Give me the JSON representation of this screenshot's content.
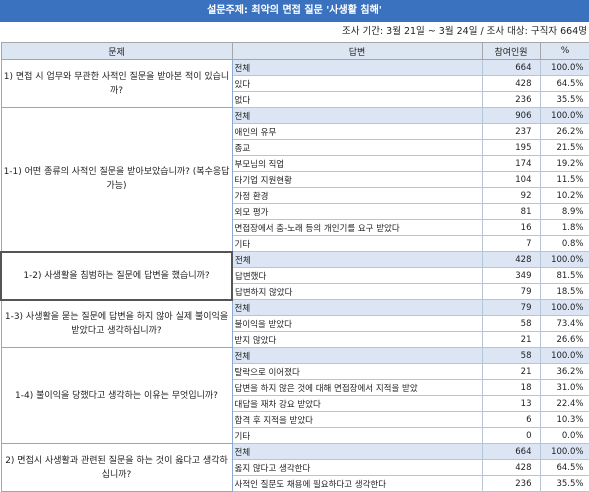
{
  "title": "설문주제: 최악의 면접 질문 '사생활 침해'",
  "period": "조사 기간: 3월 21일 ~ 3월 24일 / 조사 대상: 구직자 664명",
  "headers": {
    "question": "문제",
    "answer": "답변",
    "count": "참여인원",
    "percent": "%"
  },
  "sections": [
    {
      "question": "1) 면접 시 업무와 무관한 사적인 질문을 받아본 적이 있습니까?",
      "rows": [
        {
          "answer": "전체",
          "count": "664",
          "percent": "100.0%"
        },
        {
          "answer": "있다",
          "count": "428",
          "percent": "64.5%"
        },
        {
          "answer": "없다",
          "count": "236",
          "percent": "35.5%"
        }
      ]
    },
    {
      "question": "1-1) 어떤 종류의 사적인 질문을 받아보았습니까? (복수응답 가능)",
      "rows": [
        {
          "answer": "전체",
          "count": "906",
          "percent": "100.0%"
        },
        {
          "answer": "애인의 유무",
          "count": "237",
          "percent": "26.2%"
        },
        {
          "answer": "종교",
          "count": "195",
          "percent": "21.5%"
        },
        {
          "answer": "부모님의 직업",
          "count": "174",
          "percent": "19.2%"
        },
        {
          "answer": "타기업 지원현황",
          "count": "104",
          "percent": "11.5%"
        },
        {
          "answer": "가정 환경",
          "count": "92",
          "percent": "10.2%"
        },
        {
          "answer": "외모 평가",
          "count": "81",
          "percent": "8.9%"
        },
        {
          "answer": "면접장에서 춤-노래 등의 개인기를 요구 받았다",
          "count": "16",
          "percent": "1.8%"
        },
        {
          "answer": "기타",
          "count": "7",
          "percent": "0.8%"
        }
      ]
    },
    {
      "question": "1-2) 사생활을 침범하는 질문에 답변을 했습니까?",
      "highlight": true,
      "rows": [
        {
          "answer": "전체",
          "count": "428",
          "percent": "100.0%"
        },
        {
          "answer": "답변했다",
          "count": "349",
          "percent": "81.5%"
        },
        {
          "answer": "답변하지 않았다",
          "count": "79",
          "percent": "18.5%"
        }
      ]
    },
    {
      "question": "1-3) 사생활을 묻는 질문에 답변을 하지 않아 실제 불이익을 받았다고 생각하십니까?",
      "rows": [
        {
          "answer": "전체",
          "count": "79",
          "percent": "100.0%"
        },
        {
          "answer": "불이익을 받았다",
          "count": "58",
          "percent": "73.4%"
        },
        {
          "answer": "받지 않았다",
          "count": "21",
          "percent": "26.6%"
        }
      ]
    },
    {
      "question": "1-4) 불이익을 당했다고 생각하는 이유는 무엇입니까?",
      "rows": [
        {
          "answer": "전체",
          "count": "58",
          "percent": "100.0%"
        },
        {
          "answer": "탈락으로 이어졌다",
          "count": "21",
          "percent": "36.2%"
        },
        {
          "answer": "답변을 하지 않은 것에 대해 면접장에서 지적을 받았",
          "count": "18",
          "percent": "31.0%"
        },
        {
          "answer": "대답을 재차 강요 받았다",
          "count": "13",
          "percent": "22.4%"
        },
        {
          "answer": "합격 후 지적을 받았다",
          "count": "6",
          "percent": "10.3%"
        },
        {
          "answer": "기타",
          "count": "0",
          "percent": "0.0%"
        }
      ]
    },
    {
      "question": "2) 면접시 사생활과 관련된 질문을 하는 것이 옳다고 생각하십니까?",
      "rows": [
        {
          "answer": "전체",
          "count": "664",
          "percent": "100.0%"
        },
        {
          "answer": "옳지 않다고 생각한다",
          "count": "428",
          "percent": "64.5%"
        },
        {
          "answer": "사적인 질문도 채용에 필요하다고 생각한다",
          "count": "236",
          "percent": "35.5%"
        }
      ]
    }
  ]
}
